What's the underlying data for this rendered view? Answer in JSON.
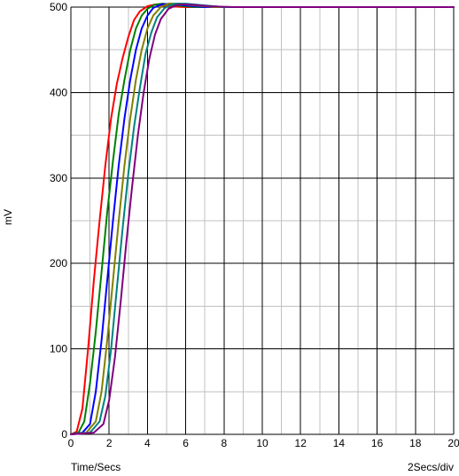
{
  "chart_data": {
    "type": "line",
    "title": "",
    "xlabel": "Time/Secs",
    "ylabel": "mV",
    "scale_note": "2Secs/div",
    "xlim": [
      0,
      20
    ],
    "ylim": [
      0,
      500
    ],
    "x_ticks": [
      0,
      2,
      4,
      6,
      8,
      10,
      12,
      14,
      16,
      18,
      20
    ],
    "y_ticks": [
      0,
      100,
      200,
      300,
      400,
      500
    ],
    "x_minor_step": 1,
    "y_minor_step": 50,
    "grid": true,
    "legend": "none",
    "series": [
      {
        "color": "#ff0000",
        "points": [
          [
            0,
            0
          ],
          [
            0.3,
            3
          ],
          [
            0.6,
            30
          ],
          [
            0.9,
            100
          ],
          [
            1.2,
            180
          ],
          [
            1.5,
            250
          ],
          [
            1.8,
            315
          ],
          [
            2.1,
            370
          ],
          [
            2.4,
            410
          ],
          [
            2.7,
            440
          ],
          [
            3.0,
            465
          ],
          [
            3.3,
            485
          ],
          [
            3.6,
            495
          ],
          [
            4.0,
            501
          ],
          [
            4.4,
            503
          ],
          [
            5.0,
            501
          ],
          [
            6.0,
            500
          ],
          [
            20,
            500
          ]
        ]
      },
      {
        "color": "#008000",
        "points": [
          [
            0,
            0
          ],
          [
            0.4,
            2
          ],
          [
            0.7,
            15
          ],
          [
            1.0,
            60
          ],
          [
            1.3,
            120
          ],
          [
            1.6,
            190
          ],
          [
            1.9,
            260
          ],
          [
            2.2,
            320
          ],
          [
            2.5,
            375
          ],
          [
            2.8,
            415
          ],
          [
            3.1,
            450
          ],
          [
            3.4,
            475
          ],
          [
            3.7,
            490
          ],
          [
            4.0,
            498
          ],
          [
            4.4,
            503
          ],
          [
            4.8,
            504
          ],
          [
            5.5,
            502
          ],
          [
            6.5,
            500
          ],
          [
            20,
            500
          ]
        ]
      },
      {
        "color": "#0000ff",
        "points": [
          [
            0,
            0
          ],
          [
            0.6,
            2
          ],
          [
            1.0,
            12
          ],
          [
            1.3,
            50
          ],
          [
            1.6,
            110
          ],
          [
            1.9,
            180
          ],
          [
            2.2,
            250
          ],
          [
            2.5,
            315
          ],
          [
            2.8,
            370
          ],
          [
            3.1,
            415
          ],
          [
            3.4,
            450
          ],
          [
            3.7,
            475
          ],
          [
            4.0,
            490
          ],
          [
            4.3,
            499
          ],
          [
            4.7,
            503
          ],
          [
            5.2,
            504
          ],
          [
            6.0,
            502
          ],
          [
            7.0,
            500
          ],
          [
            20,
            500
          ]
        ]
      },
      {
        "color": "#808000",
        "points": [
          [
            0,
            0
          ],
          [
            0.8,
            2
          ],
          [
            1.3,
            15
          ],
          [
            1.6,
            50
          ],
          [
            1.9,
            110
          ],
          [
            2.2,
            180
          ],
          [
            2.5,
            250
          ],
          [
            2.8,
            315
          ],
          [
            3.1,
            370
          ],
          [
            3.4,
            415
          ],
          [
            3.7,
            450
          ],
          [
            4.0,
            475
          ],
          [
            4.3,
            490
          ],
          [
            4.7,
            500
          ],
          [
            5.1,
            504
          ],
          [
            5.6,
            504
          ],
          [
            6.5,
            502
          ],
          [
            7.5,
            500
          ],
          [
            20,
            500
          ]
        ]
      },
      {
        "color": "#008080",
        "points": [
          [
            0,
            0
          ],
          [
            1.0,
            2
          ],
          [
            1.5,
            15
          ],
          [
            1.8,
            45
          ],
          [
            2.1,
            100
          ],
          [
            2.4,
            170
          ],
          [
            2.7,
            240
          ],
          [
            3.0,
            305
          ],
          [
            3.3,
            360
          ],
          [
            3.6,
            405
          ],
          [
            3.9,
            445
          ],
          [
            4.2,
            470
          ],
          [
            4.5,
            488
          ],
          [
            4.9,
            499
          ],
          [
            5.4,
            504
          ],
          [
            6.0,
            504
          ],
          [
            7.0,
            502
          ],
          [
            8.0,
            500
          ],
          [
            20,
            500
          ]
        ]
      },
      {
        "color": "#800080",
        "points": [
          [
            0,
            0
          ],
          [
            1.2,
            2
          ],
          [
            1.7,
            12
          ],
          [
            2.0,
            40
          ],
          [
            2.3,
            90
          ],
          [
            2.6,
            155
          ],
          [
            2.9,
            225
          ],
          [
            3.2,
            290
          ],
          [
            3.5,
            350
          ],
          [
            3.8,
            400
          ],
          [
            4.1,
            440
          ],
          [
            4.4,
            468
          ],
          [
            4.7,
            486
          ],
          [
            5.1,
            498
          ],
          [
            5.6,
            503
          ],
          [
            6.2,
            503
          ],
          [
            7.2,
            501
          ],
          [
            8.5,
            500
          ],
          [
            20,
            500
          ]
        ]
      }
    ]
  }
}
